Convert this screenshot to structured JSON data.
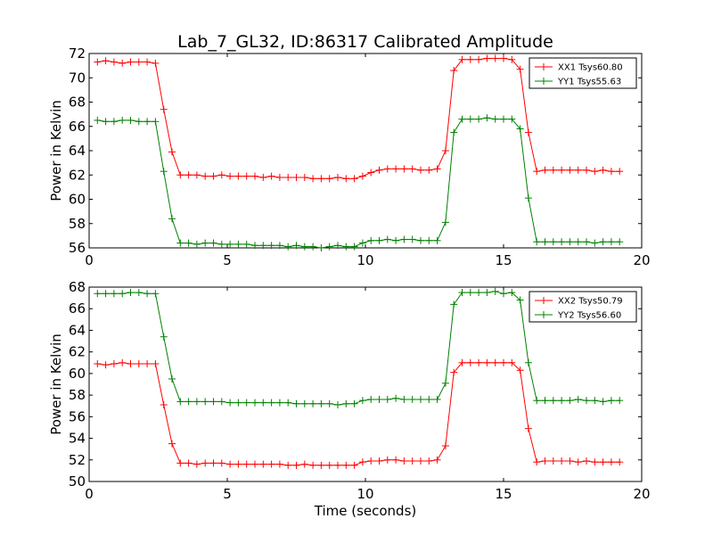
{
  "chart_data": [
    {
      "type": "line",
      "title": "Lab_7_GL32, ID:86317 Calibrated Amplitude",
      "xlabel": "",
      "ylabel": "Power in Kelvin",
      "xlim": [
        0,
        20
      ],
      "ylim": [
        56,
        72
      ],
      "xticks": [
        "0",
        "5",
        "10",
        "15",
        "20"
      ],
      "yticks": [
        "56",
        "58",
        "60",
        "62",
        "64",
        "66",
        "68",
        "70",
        "72"
      ],
      "grid": false,
      "legend_position": "top-right",
      "x": [
        0.3,
        0.6,
        0.9,
        1.2,
        1.5,
        1.8,
        2.1,
        2.4,
        2.7,
        3.0,
        3.3,
        3.6,
        3.9,
        4.2,
        4.5,
        4.8,
        5.1,
        5.4,
        5.7,
        6.0,
        6.3,
        6.6,
        6.9,
        7.2,
        7.5,
        7.8,
        8.1,
        8.4,
        8.7,
        9.0,
        9.3,
        9.6,
        9.9,
        10.2,
        10.5,
        10.8,
        11.1,
        11.4,
        11.7,
        12.0,
        12.3,
        12.6,
        12.9,
        13.2,
        13.5,
        13.8,
        14.1,
        14.4,
        14.7,
        15.0,
        15.3,
        15.6,
        15.9,
        16.2,
        16.5,
        16.8,
        17.1,
        17.4,
        17.7,
        18.0,
        18.3,
        18.6,
        18.9,
        19.2
      ],
      "series": [
        {
          "name": "XX1 Tsys60.80",
          "color": "#ff0000",
          "values": [
            71.3,
            71.4,
            71.3,
            71.2,
            71.3,
            71.3,
            71.3,
            71.2,
            67.4,
            63.9,
            62.0,
            62.0,
            62.0,
            61.9,
            61.9,
            62.0,
            61.9,
            61.9,
            61.9,
            61.9,
            61.8,
            61.9,
            61.8,
            61.8,
            61.8,
            61.8,
            61.7,
            61.7,
            61.7,
            61.8,
            61.7,
            61.7,
            61.9,
            62.2,
            62.4,
            62.5,
            62.5,
            62.5,
            62.5,
            62.4,
            62.4,
            62.5,
            64.0,
            70.6,
            71.5,
            71.5,
            71.5,
            71.6,
            71.6,
            71.6,
            71.5,
            70.7,
            65.5,
            62.3,
            62.4,
            62.4,
            62.4,
            62.4,
            62.4,
            62.4,
            62.3,
            62.4,
            62.3,
            62.3
          ]
        },
        {
          "name": "YY1 Tsys55.63",
          "color": "#008000",
          "values": [
            66.5,
            66.4,
            66.4,
            66.5,
            66.5,
            66.4,
            66.4,
            66.4,
            62.3,
            58.4,
            56.4,
            56.4,
            56.3,
            56.4,
            56.4,
            56.3,
            56.3,
            56.3,
            56.3,
            56.2,
            56.2,
            56.2,
            56.2,
            56.1,
            56.2,
            56.1,
            56.1,
            56.0,
            56.1,
            56.2,
            56.1,
            56.1,
            56.4,
            56.6,
            56.6,
            56.7,
            56.6,
            56.7,
            56.7,
            56.6,
            56.6,
            56.6,
            58.1,
            65.5,
            66.6,
            66.6,
            66.6,
            66.7,
            66.6,
            66.6,
            66.6,
            65.8,
            60.1,
            56.5,
            56.5,
            56.5,
            56.5,
            56.5,
            56.5,
            56.5,
            56.4,
            56.5,
            56.5,
            56.5
          ]
        }
      ]
    },
    {
      "type": "line",
      "title": "",
      "xlabel": "Time (seconds)",
      "ylabel": "Power in Kelvin",
      "xlim": [
        0,
        20
      ],
      "ylim": [
        50,
        68
      ],
      "xticks": [
        "0",
        "5",
        "10",
        "15",
        "20"
      ],
      "yticks": [
        "50",
        "52",
        "54",
        "56",
        "58",
        "60",
        "62",
        "64",
        "66",
        "68"
      ],
      "grid": false,
      "legend_position": "top-right",
      "x": [
        0.3,
        0.6,
        0.9,
        1.2,
        1.5,
        1.8,
        2.1,
        2.4,
        2.7,
        3.0,
        3.3,
        3.6,
        3.9,
        4.2,
        4.5,
        4.8,
        5.1,
        5.4,
        5.7,
        6.0,
        6.3,
        6.6,
        6.9,
        7.2,
        7.5,
        7.8,
        8.1,
        8.4,
        8.7,
        9.0,
        9.3,
        9.6,
        9.9,
        10.2,
        10.5,
        10.8,
        11.1,
        11.4,
        11.7,
        12.0,
        12.3,
        12.6,
        12.9,
        13.2,
        13.5,
        13.8,
        14.1,
        14.4,
        14.7,
        15.0,
        15.3,
        15.6,
        15.9,
        16.2,
        16.5,
        16.8,
        17.1,
        17.4,
        17.7,
        18.0,
        18.3,
        18.6,
        18.9,
        19.2
      ],
      "series": [
        {
          "name": "XX2 Tsys50.79",
          "color": "#ff0000",
          "values": [
            60.9,
            60.8,
            60.9,
            61.0,
            60.9,
            60.9,
            60.9,
            60.9,
            57.1,
            53.5,
            51.7,
            51.7,
            51.6,
            51.7,
            51.7,
            51.7,
            51.6,
            51.6,
            51.6,
            51.6,
            51.6,
            51.6,
            51.6,
            51.5,
            51.5,
            51.6,
            51.5,
            51.5,
            51.5,
            51.5,
            51.5,
            51.5,
            51.8,
            51.9,
            51.9,
            52.0,
            52.0,
            51.9,
            51.9,
            51.9,
            51.9,
            52.0,
            53.3,
            60.1,
            61.0,
            61.0,
            61.0,
            61.0,
            61.0,
            61.0,
            61.0,
            60.3,
            54.9,
            51.8,
            51.9,
            51.9,
            51.9,
            51.9,
            51.8,
            51.9,
            51.8,
            51.8,
            51.8,
            51.8
          ]
        },
        {
          "name": "YY2 Tsys56.60",
          "color": "#008000",
          "values": [
            67.4,
            67.4,
            67.4,
            67.4,
            67.5,
            67.5,
            67.4,
            67.4,
            63.4,
            59.5,
            57.4,
            57.4,
            57.4,
            57.4,
            57.4,
            57.4,
            57.3,
            57.3,
            57.3,
            57.3,
            57.3,
            57.3,
            57.3,
            57.3,
            57.2,
            57.2,
            57.2,
            57.2,
            57.2,
            57.1,
            57.2,
            57.2,
            57.5,
            57.6,
            57.6,
            57.6,
            57.7,
            57.6,
            57.6,
            57.6,
            57.6,
            57.6,
            59.1,
            66.4,
            67.5,
            67.5,
            67.5,
            67.5,
            67.6,
            67.4,
            67.5,
            66.8,
            61.0,
            57.5,
            57.5,
            57.5,
            57.5,
            57.5,
            57.6,
            57.5,
            57.5,
            57.4,
            57.5,
            57.5
          ]
        }
      ]
    }
  ]
}
